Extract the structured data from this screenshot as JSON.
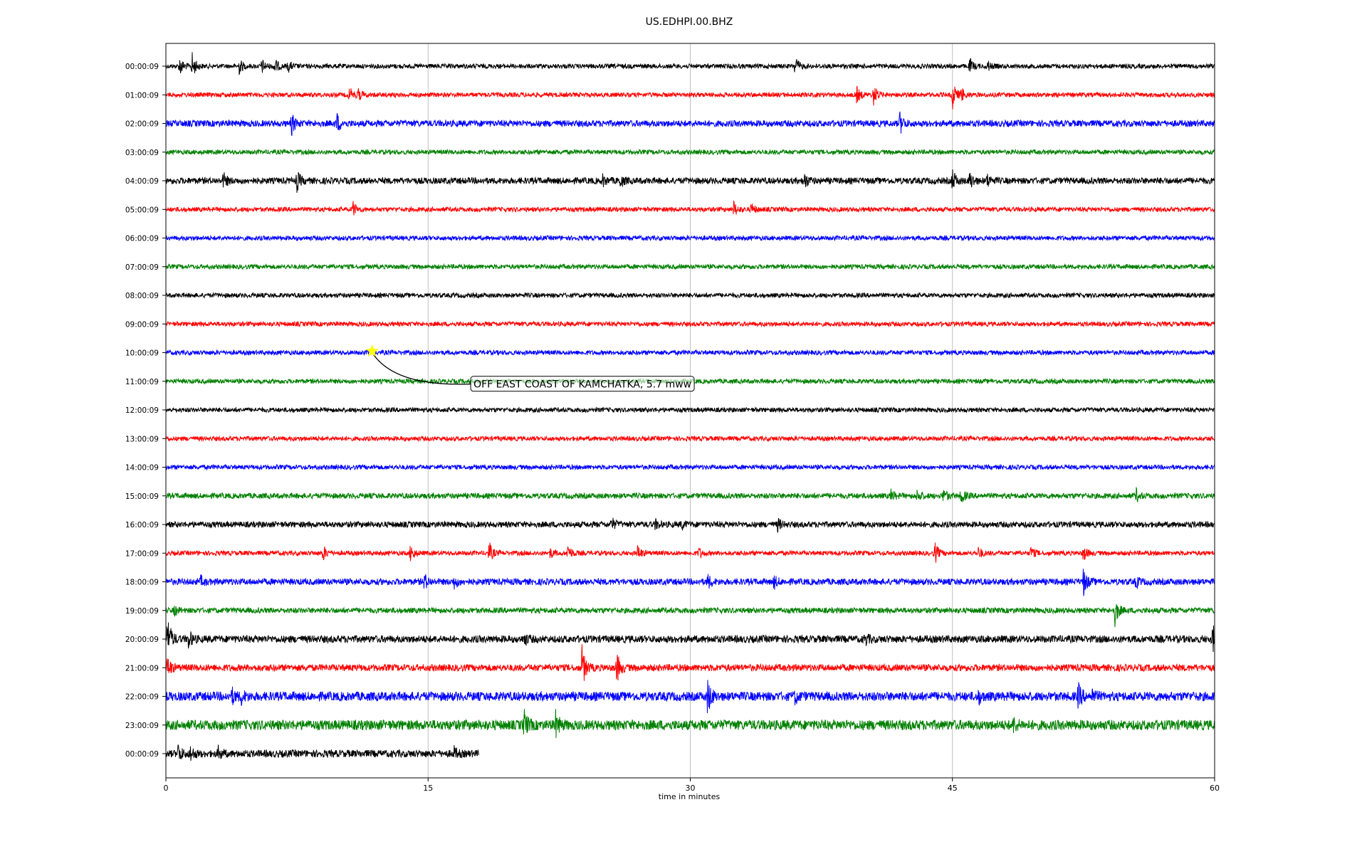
{
  "chart_data": {
    "type": "line",
    "title": "US.EDHPI.00.BHZ",
    "xlabel": "time in minutes",
    "ylabel": "",
    "xlim": [
      0,
      60
    ],
    "x_ticks": [
      "0",
      "15",
      "30",
      "45",
      "60"
    ],
    "grid": "vertical",
    "series_colors": [
      "#000000",
      "#ff0000",
      "#0000ff",
      "#008000"
    ],
    "rows": [
      {
        "label": "00:00:09",
        "end_minute": 60,
        "noise": 1.0,
        "events": [
          [
            0.8,
            12
          ],
          [
            1.5,
            18
          ],
          [
            4.2,
            10
          ],
          [
            5.5,
            9
          ],
          [
            6.2,
            12
          ],
          [
            7.0,
            7
          ],
          [
            36.0,
            14
          ],
          [
            46.0,
            10
          ],
          [
            47.0,
            7
          ]
        ]
      },
      {
        "label": "01:00:09",
        "end_minute": 60,
        "noise": 1.0,
        "events": [
          [
            10.5,
            10
          ],
          [
            11.0,
            8
          ],
          [
            39.5,
            12
          ],
          [
            40.5,
            14
          ],
          [
            45.0,
            20
          ],
          [
            45.5,
            10
          ]
        ]
      },
      {
        "label": "02:00:09",
        "end_minute": 60,
        "noise": 1.4,
        "events": [
          [
            7.2,
            14
          ],
          [
            9.8,
            12
          ],
          [
            42.0,
            14
          ]
        ]
      },
      {
        "label": "03:00:09",
        "end_minute": 60,
        "noise": 1.0,
        "events": []
      },
      {
        "label": "04:00:09",
        "end_minute": 60,
        "noise": 1.4,
        "events": [
          [
            3.3,
            10
          ],
          [
            7.5,
            13
          ],
          [
            25.0,
            7
          ],
          [
            26.0,
            8
          ],
          [
            36.5,
            12
          ],
          [
            45.0,
            14
          ],
          [
            46.0,
            12
          ],
          [
            47.0,
            8
          ]
        ]
      },
      {
        "label": "05:00:09",
        "end_minute": 60,
        "noise": 1.0,
        "events": [
          [
            10.7,
            10
          ],
          [
            32.5,
            10
          ],
          [
            33.5,
            8
          ]
        ]
      },
      {
        "label": "06:00:09",
        "end_minute": 60,
        "noise": 1.0,
        "events": []
      },
      {
        "label": "07:00:09",
        "end_minute": 60,
        "noise": 1.0,
        "events": []
      },
      {
        "label": "08:00:09",
        "end_minute": 60,
        "noise": 1.0,
        "events": []
      },
      {
        "label": "09:00:09",
        "end_minute": 60,
        "noise": 1.0,
        "events": []
      },
      {
        "label": "10:00:09",
        "end_minute": 60,
        "noise": 1.0,
        "events": []
      },
      {
        "label": "11:00:09",
        "end_minute": 60,
        "noise": 1.0,
        "events": []
      },
      {
        "label": "12:00:09",
        "end_minute": 60,
        "noise": 1.0,
        "events": []
      },
      {
        "label": "13:00:09",
        "end_minute": 60,
        "noise": 1.0,
        "events": []
      },
      {
        "label": "14:00:09",
        "end_minute": 60,
        "noise": 1.0,
        "events": []
      },
      {
        "label": "15:00:09",
        "end_minute": 60,
        "noise": 1.2,
        "events": [
          [
            41.5,
            8
          ],
          [
            43.0,
            8
          ],
          [
            44.5,
            9
          ],
          [
            45.5,
            10
          ],
          [
            55.5,
            9
          ]
        ]
      },
      {
        "label": "16:00:09",
        "end_minute": 60,
        "noise": 1.3,
        "events": [
          [
            25.5,
            8
          ],
          [
            28.0,
            6
          ],
          [
            29.5,
            6
          ],
          [
            35.0,
            8
          ]
        ]
      },
      {
        "label": "17:00:09",
        "end_minute": 60,
        "noise": 1.0,
        "events": [
          [
            9.0,
            10
          ],
          [
            14.0,
            12
          ],
          [
            18.5,
            14
          ],
          [
            22.0,
            6
          ],
          [
            23.0,
            12
          ],
          [
            27.0,
            10
          ],
          [
            30.5,
            7
          ],
          [
            44.0,
            14
          ],
          [
            46.5,
            8
          ],
          [
            49.5,
            8
          ],
          [
            52.5,
            10
          ]
        ]
      },
      {
        "label": "18:00:09",
        "end_minute": 60,
        "noise": 1.4,
        "events": [
          [
            2.0,
            6
          ],
          [
            14.8,
            10
          ],
          [
            16.5,
            8
          ],
          [
            31.0,
            9
          ],
          [
            34.8,
            8
          ],
          [
            52.5,
            18
          ],
          [
            55.5,
            7
          ]
        ]
      },
      {
        "label": "19:00:09",
        "end_minute": 60,
        "noise": 1.2,
        "events": [
          [
            0.5,
            6
          ],
          [
            54.3,
            20
          ]
        ]
      },
      {
        "label": "20:00:09",
        "end_minute": 60,
        "noise": 1.6,
        "events": [
          [
            0.1,
            30
          ],
          [
            1.3,
            12
          ],
          [
            20.5,
            8
          ],
          [
            40.0,
            8
          ],
          [
            59.9,
            18
          ]
        ]
      },
      {
        "label": "21:00:09",
        "end_minute": 60,
        "noise": 1.5,
        "events": [
          [
            0.1,
            14
          ],
          [
            23.8,
            30
          ],
          [
            25.8,
            20
          ]
        ]
      },
      {
        "label": "22:00:09",
        "end_minute": 60,
        "noise": 2.0,
        "events": [
          [
            3.8,
            9
          ],
          [
            4.3,
            9
          ],
          [
            31.0,
            22
          ],
          [
            36.0,
            8
          ],
          [
            46.5,
            8
          ],
          [
            52.2,
            16
          ],
          [
            53.0,
            8
          ]
        ]
      },
      {
        "label": "23:00:09",
        "end_minute": 60,
        "noise": 2.2,
        "events": [
          [
            20.5,
            18
          ],
          [
            22.3,
            16
          ],
          [
            48.5,
            8
          ]
        ]
      },
      {
        "label": "00:00:09",
        "end_minute": 17.9,
        "noise": 1.6,
        "events": [
          [
            0.7,
            12
          ],
          [
            1.4,
            10
          ],
          [
            3.0,
            8
          ],
          [
            16.5,
            7
          ]
        ]
      }
    ],
    "event_marker": {
      "row": 10,
      "minute": 11.8,
      "color": "#ffff00"
    },
    "annotation": {
      "text": "OFF EAST COAST OF KAMCHATKA, 5.7 mww",
      "minute": 17.6,
      "row": 11.1
    }
  }
}
